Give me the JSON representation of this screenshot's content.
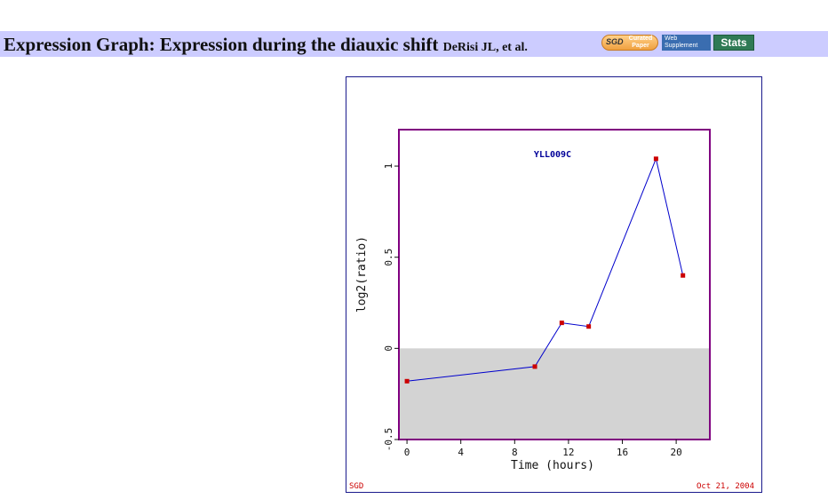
{
  "header": {
    "title": "Expression Graph: Expression during the diauxic shift",
    "citation": "DeRisi JL, et al.",
    "badges": {
      "sgd_curated_logo": "SGD",
      "sgd_curated_text": "Curated Paper",
      "web_supplement": "Web Supplement",
      "stats": "Stats"
    }
  },
  "colors": {
    "header_background": "#ccccff",
    "plot_border": "#800080",
    "negative_region": "#d3d3d3",
    "series_line": "#0000cc",
    "series_marker": "#cc0000",
    "gene_label": "#000099",
    "footer_text": "#cc0000"
  },
  "chart": {
    "footer_left": "SGD",
    "footer_right": "Oct 21, 2004"
  },
  "chart_data": {
    "type": "line",
    "title": "YLL009C",
    "xlabel": "Time (hours)",
    "ylabel": "log2(ratio)",
    "xlim": [
      -0.6,
      22.5
    ],
    "ylim": [
      -0.5,
      1.2
    ],
    "xticks": [
      "0",
      "4",
      "8",
      "12",
      "16",
      "20"
    ],
    "yticks": [
      "-0.5",
      "0",
      "0.5",
      "1"
    ],
    "grid": false,
    "negative_region_shaded": true,
    "series": [
      {
        "x": [
          0,
          9.5,
          11.5,
          13.5,
          18.5,
          20.5
        ],
        "y": [
          -0.18,
          -0.1,
          0.14,
          0.12,
          1.04,
          0.4
        ]
      }
    ]
  }
}
